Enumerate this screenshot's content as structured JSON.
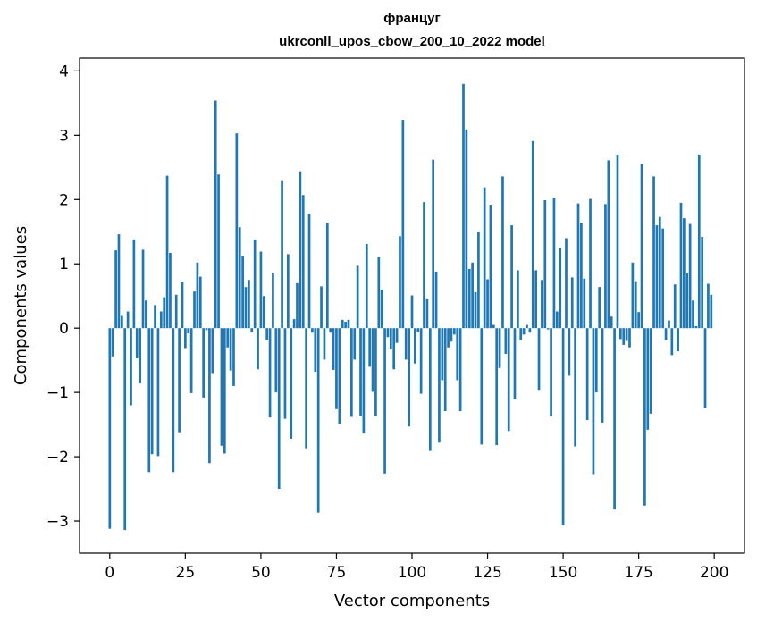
{
  "chart_data": {
    "type": "bar",
    "title_line1": "француг",
    "title_line2": "ukrconll_upos_cbow_200_10_2022 model",
    "xlabel": "Vector components",
    "ylabel": "Components values",
    "xlim": [
      -10,
      210
    ],
    "ylim": [
      -3.5,
      4.2
    ],
    "xticks": [
      0,
      25,
      50,
      75,
      100,
      125,
      150,
      175,
      200
    ],
    "yticks": [
      -3,
      -2,
      -1,
      0,
      1,
      2,
      3,
      4
    ],
    "ytick_labels": [
      "−3",
      "−2",
      "−1",
      "0",
      "1",
      "2",
      "3",
      "4"
    ],
    "bar_color": "#1f77b4",
    "grid": false,
    "values": [
      -3.12,
      -0.44,
      1.21,
      1.46,
      0.19,
      -3.14,
      0.26,
      -1.2,
      1.38,
      -0.47,
      -0.86,
      1.22,
      0.43,
      -2.24,
      -1.96,
      0.36,
      -1.99,
      0.26,
      0.48,
      2.37,
      1.17,
      -2.24,
      0.52,
      -1.62,
      0.72,
      -0.31,
      -0.08,
      -1.01,
      0.57,
      1.02,
      0.8,
      -1.08,
      -0.03,
      -2.1,
      -0.7,
      3.54,
      2.39,
      -1.83,
      -1.95,
      -0.3,
      -0.66,
      -0.9,
      3.03,
      1.57,
      1.12,
      0.64,
      0.75,
      -0.06,
      1.38,
      -0.64,
      1.19,
      0.5,
      -0.18,
      -1.39,
      0.85,
      -1.0,
      -2.5,
      2.3,
      -1.41,
      1.15,
      -1.72,
      0.14,
      0.7,
      2.44,
      2.07,
      -1.87,
      1.77,
      -0.07,
      -0.68,
      -2.87,
      0.65,
      -0.49,
      1.64,
      -0.07,
      -0.65,
      -1.26,
      -1.49,
      0.13,
      0.1,
      0.13,
      -1.38,
      -0.49,
      0.97,
      -1.36,
      -1.64,
      1.31,
      -0.6,
      -0.99,
      -1.37,
      1.1,
      0.6,
      -2.26,
      -0.14,
      -0.33,
      -0.64,
      -0.23,
      1.43,
      3.24,
      -0.49,
      -1.53,
      0.51,
      -0.55,
      -0.06,
      -1.02,
      1.96,
      0.45,
      -1.91,
      2.62,
      0.88,
      -1.78,
      -0.81,
      -1.29,
      -0.3,
      -0.21,
      -0.1,
      -0.81,
      -1.29,
      3.8,
      3.09,
      0.92,
      1.02,
      0.56,
      1.49,
      -1.81,
      2.19,
      0.76,
      1.92,
      0.05,
      -1.82,
      -0.62,
      2.36,
      -0.4,
      -1.6,
      1.6,
      -1.11,
      0.9,
      -0.18,
      -0.1,
      0.05,
      -0.07,
      2.91,
      0.9,
      -0.96,
      0.75,
      1.99,
      -0.02,
      -1.37,
      2.03,
      0.26,
      1.25,
      -3.07,
      1.4,
      -0.74,
      0.79,
      -1.84,
      1.94,
      1.64,
      0.77,
      -1.43,
      2.01,
      -2.27,
      -1.0,
      0.64,
      -1.47,
      1.93,
      2.61,
      0.18,
      -2.82,
      2.7,
      -0.17,
      -0.26,
      -0.2,
      -0.3,
      1.02,
      0.73,
      0.25,
      2.55,
      -2.76,
      -1.58,
      -1.33,
      2.36,
      1.6,
      1.73,
      1.55,
      -0.19,
      0.12,
      -0.42,
      0.68,
      -0.36,
      1.95,
      1.71,
      0.85,
      1.62,
      0.43,
      0.03,
      2.7,
      1.42,
      -1.24,
      0.69,
      0.52
    ]
  }
}
